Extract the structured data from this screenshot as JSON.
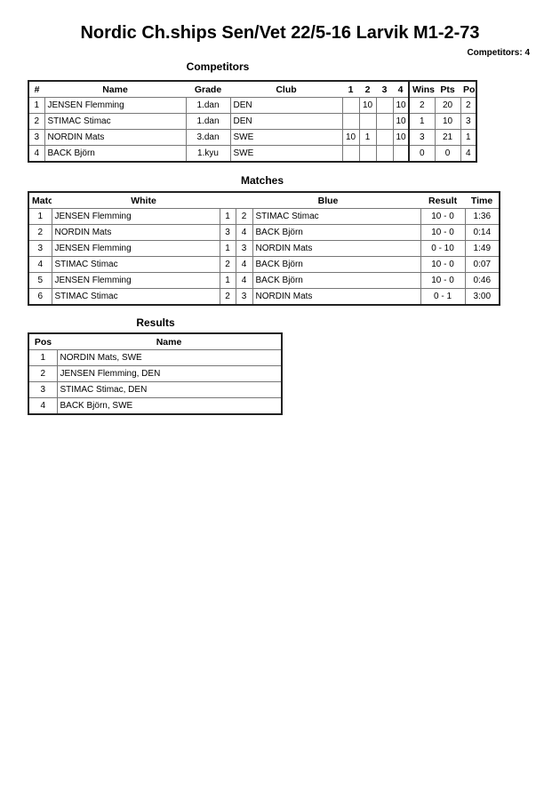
{
  "title": "Nordic Ch.ships Sen/Vet  22/5-16  Larvik   M1-2-73",
  "competitors_count": "Competitors: 4",
  "competitors": {
    "heading": "Competitors",
    "headers": [
      "#",
      "Name",
      "Grade",
      "Club",
      "1",
      "2",
      "3",
      "4",
      "Wins",
      "Pts",
      "Pos"
    ],
    "rows": [
      [
        "1",
        "JENSEN Flemming",
        "1.dan",
        "DEN",
        "",
        "10",
        "",
        "10",
        "2",
        "20",
        "2"
      ],
      [
        "2",
        "STIMAC Stimac",
        "1.dan",
        "DEN",
        "",
        "",
        "",
        "10",
        "1",
        "10",
        "3"
      ],
      [
        "3",
        "NORDIN Mats",
        "3.dan",
        "SWE",
        "10",
        "1",
        "",
        "10",
        "3",
        "21",
        "1"
      ],
      [
        "4",
        "BACK Björn",
        "1.kyu",
        "SWE",
        "",
        "",
        "",
        "",
        "0",
        "0",
        "4"
      ]
    ]
  },
  "matches": {
    "heading": "Matches",
    "headers": [
      "Match",
      "White",
      "Blue",
      "Result",
      "Time"
    ],
    "rows": [
      [
        "1",
        "JENSEN Flemming",
        "1",
        "2",
        "STIMAC Stimac",
        "10 - 0",
        "1:36"
      ],
      [
        "2",
        "NORDIN Mats",
        "3",
        "4",
        "BACK Björn",
        "10 - 0",
        "0:14"
      ],
      [
        "3",
        "JENSEN Flemming",
        "1",
        "3",
        "NORDIN Mats",
        "0 - 10",
        "1:49"
      ],
      [
        "4",
        "STIMAC Stimac",
        "2",
        "4",
        "BACK Björn",
        "10 - 0",
        "0:07"
      ],
      [
        "5",
        "JENSEN Flemming",
        "1",
        "4",
        "BACK Björn",
        "10 - 0",
        "0:46"
      ],
      [
        "6",
        "STIMAC Stimac",
        "2",
        "3",
        "NORDIN Mats",
        "0 - 1",
        "3:00"
      ]
    ]
  },
  "results": {
    "heading": "Results",
    "headers": [
      "Pos",
      "Name"
    ],
    "rows": [
      [
        "1",
        "NORDIN Mats, SWE"
      ],
      [
        "2",
        "JENSEN Flemming, DEN"
      ],
      [
        "3",
        "STIMAC Stimac, DEN"
      ],
      [
        "4",
        "BACK Björn, SWE"
      ]
    ]
  }
}
